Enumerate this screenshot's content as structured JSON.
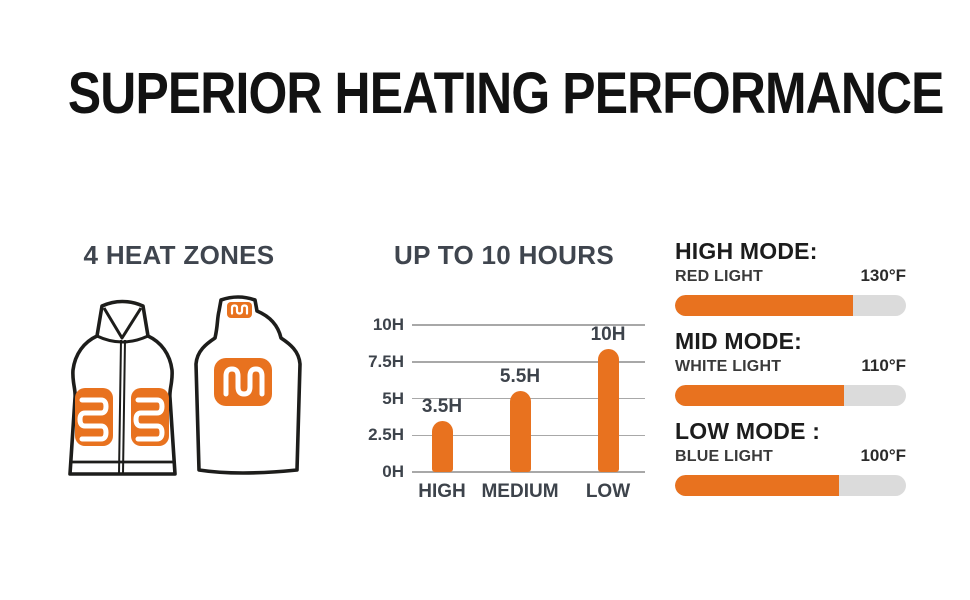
{
  "page": {
    "title": "SUPERIOR HEATING PERFORMANCE"
  },
  "sections": {
    "heat_zones": {
      "heading": "4 HEAT ZONES",
      "icons": [
        "vest-front-illustration",
        "vest-back-illustration",
        "heating-coil-icon"
      ]
    },
    "runtime": {
      "heading": "UP TO 10 HOURS"
    },
    "modes": {
      "items": [
        {
          "name": "HIGH MODE:",
          "light": "RED LIGHT",
          "temp": "130°F",
          "fill_pct": 77
        },
        {
          "name": "MID MODE:",
          "light": "WHITE LIGHT",
          "temp": "110°F",
          "fill_pct": 73
        },
        {
          "name": "LOW MODE :",
          "light": "BLUE LIGHT",
          "temp": "100°F",
          "fill_pct": 71
        }
      ]
    }
  },
  "chart_data": {
    "type": "bar",
    "title": "UP TO 10 HOURS",
    "categories": [
      "HIGH",
      "MEDIUM",
      "LOW"
    ],
    "values": [
      3.5,
      5.5,
      10
    ],
    "value_labels": [
      "3.5H",
      "5.5H",
      "10H"
    ],
    "yticks": [
      {
        "label": "10H",
        "value": 10
      },
      {
        "label": "7.5H",
        "value": 7.5
      },
      {
        "label": "5H",
        "value": 5
      },
      {
        "label": "2.5H",
        "value": 2.5
      },
      {
        "label": "0H",
        "value": 0
      }
    ],
    "ylim": [
      0,
      10
    ],
    "xlabel": "",
    "ylabel": "",
    "grid": true,
    "legend": null,
    "bar_color": "#E8721F"
  },
  "colors": {
    "accent_orange": "#E8721F",
    "bar_track_gray": "#DBDBDB",
    "heading_slate": "#3F454E",
    "outline_dark": "#1D1D1B",
    "gridline_gray": "#A8A8A8",
    "background": "#FFFFFF"
  }
}
